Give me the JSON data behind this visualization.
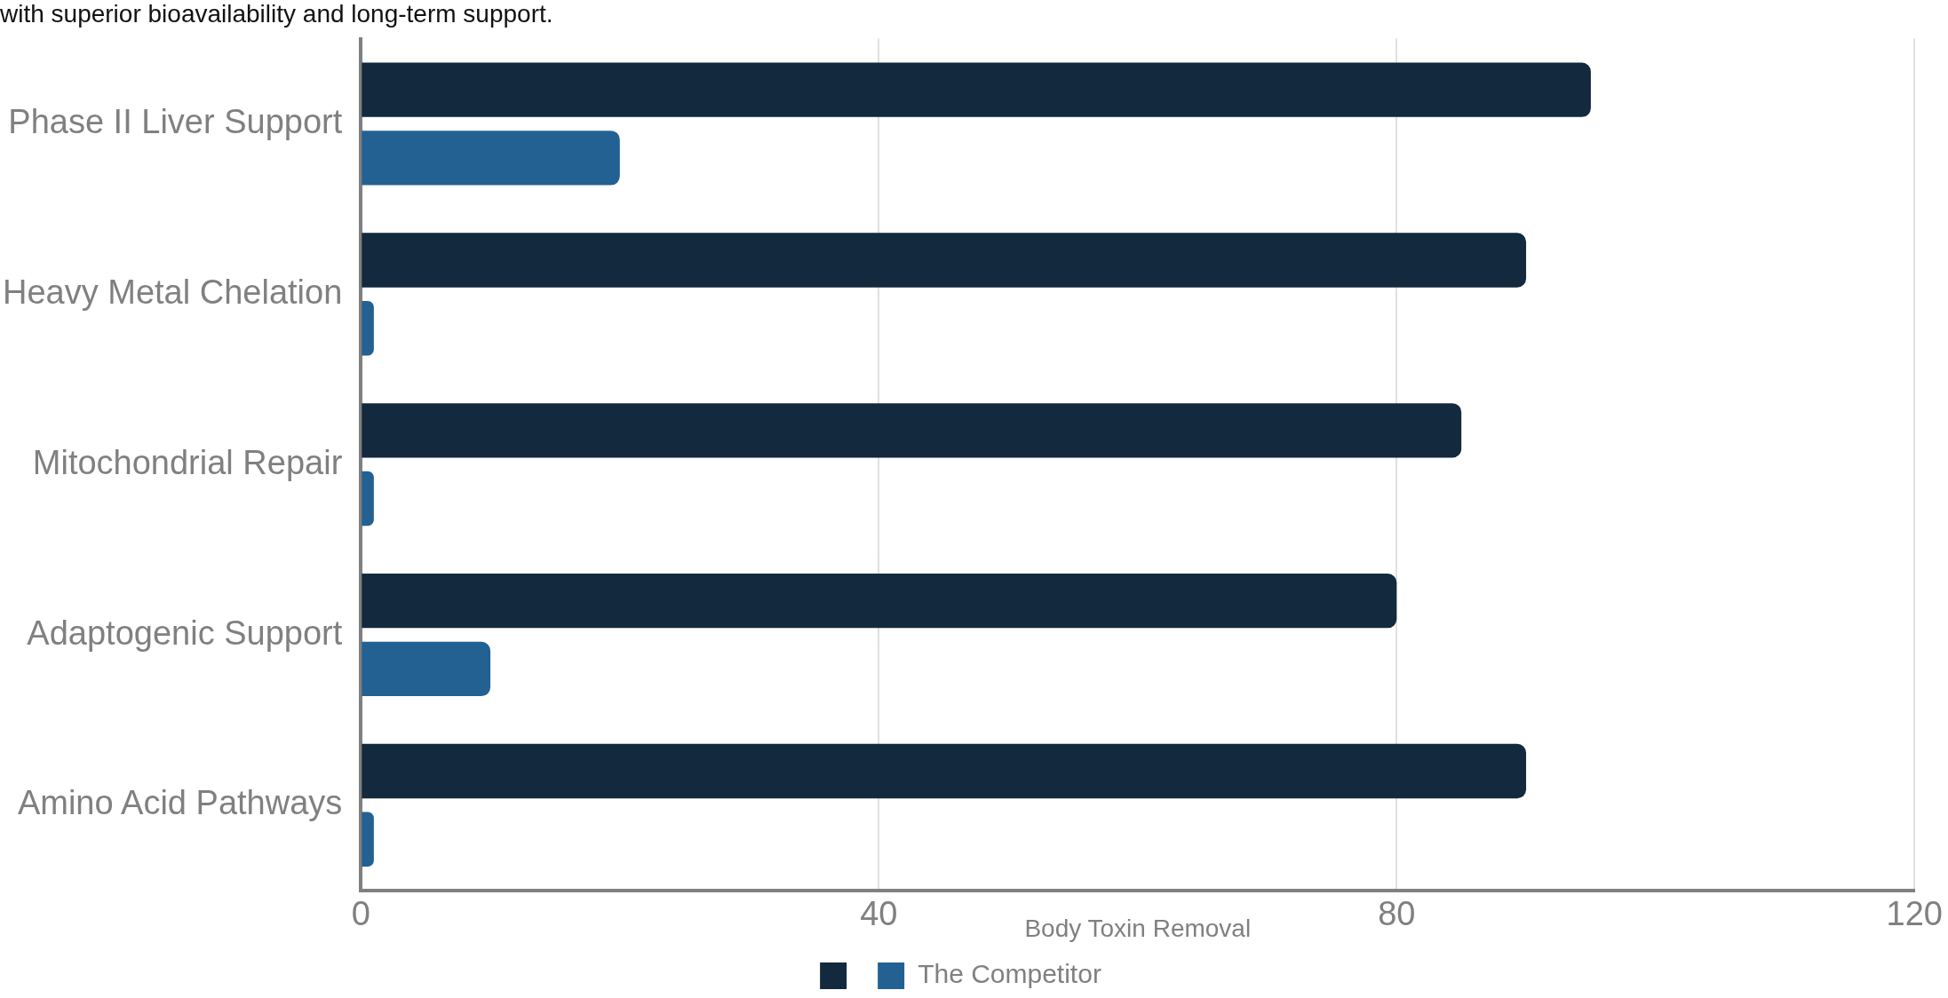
{
  "chart_data": {
    "type": "bar",
    "orientation": "horizontal",
    "subtitle": "with superior bioavailability and long-term support.",
    "xlabel": "Body Toxin Removal",
    "categories": [
      "Phase II Liver Support",
      "Heavy Metal Chelation",
      "Mitochondrial Repair",
      "Adaptogenic Support",
      "Amino Acid Pathways"
    ],
    "series": [
      {
        "color": "#13293d",
        "values": [
          95,
          90,
          85,
          80,
          90
        ]
      },
      {
        "name": "The Competitor",
        "color": "#236192",
        "values": [
          20,
          1,
          1,
          10,
          1
        ]
      }
    ],
    "xlim": [
      0,
      120
    ],
    "xticks": [
      0,
      40,
      80,
      120
    ],
    "grid": "x",
    "legend": "bottom"
  }
}
